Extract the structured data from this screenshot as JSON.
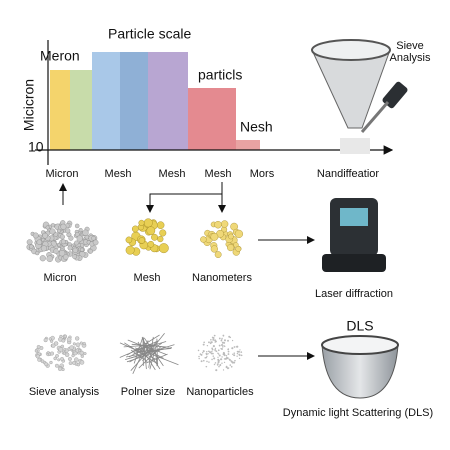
{
  "chart_panel": {
    "title": "Particle scale",
    "y_axis_label": "Micicron",
    "bar_labels": [
      "Meron",
      "particls",
      "Nesh"
    ],
    "y_tick": "10",
    "x_labels": [
      "Micron",
      "Mesh",
      "Mesh",
      "Mesh",
      "Mors",
      "Nandiffeatior"
    ]
  },
  "sieve": {
    "label_lines": [
      "Sieve",
      "Analysis"
    ]
  },
  "row1": {
    "items": [
      "Micron",
      "Mesh",
      "Nanometers"
    ],
    "instrument": "Laser diffraction"
  },
  "row2": {
    "title": "DLS",
    "items": [
      "Sieve analysis",
      "Polner size",
      "Nanoparticles"
    ],
    "instrument": "Dynamic light Scattering (DLS)"
  }
}
